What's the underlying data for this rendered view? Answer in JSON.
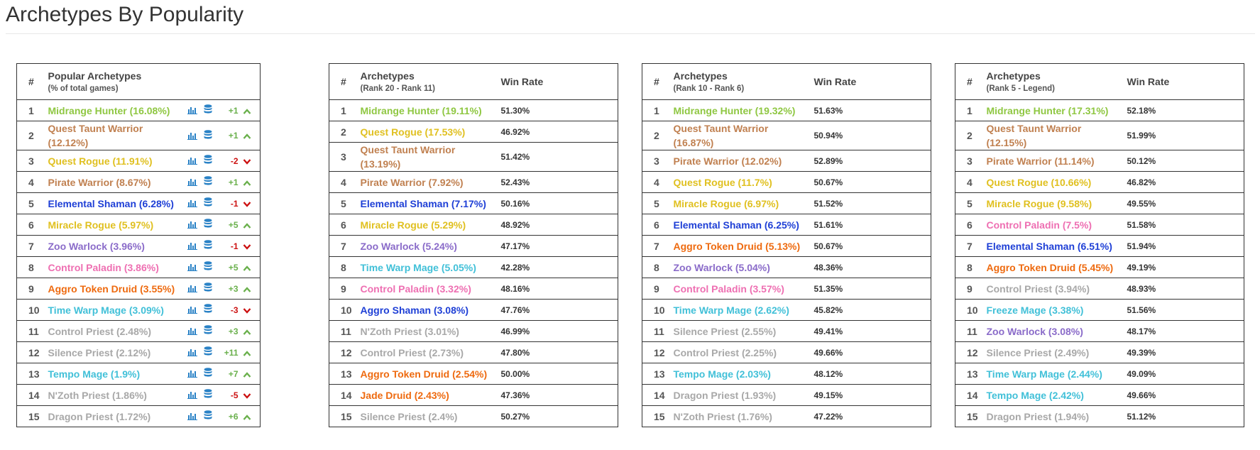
{
  "page": {
    "title": "Archetypes By Popularity"
  },
  "colors": {
    "hunter": "#8fc742",
    "warrior": "#c08050",
    "rogue": "#e0c020",
    "shaman": "#1e3fd6",
    "warlock": "#8a6bc9",
    "paladin": "#ee6fb2",
    "druid": "#ee6a0f",
    "mage": "#41c0d8",
    "priest": "#a8a8a8",
    "up": "#6ab04c",
    "down": "#cc1111"
  },
  "popular": {
    "hash": "#",
    "header": "Popular Archetypes",
    "subheader": "(% of total games)",
    "rows": [
      {
        "rank": "1",
        "name": "Midrange Hunter (16.08%)",
        "cls": "hunter",
        "change": "+1",
        "dir": "up"
      },
      {
        "rank": "2",
        "name": "Quest Taunt Warrior (12.12%)",
        "cls": "warrior",
        "change": "+1",
        "dir": "up"
      },
      {
        "rank": "3",
        "name": "Quest Rogue (11.91%)",
        "cls": "rogue",
        "change": "-2",
        "dir": "down"
      },
      {
        "rank": "4",
        "name": "Pirate Warrior (8.67%)",
        "cls": "warrior",
        "change": "+1",
        "dir": "up"
      },
      {
        "rank": "5",
        "name": "Elemental Shaman (6.28%)",
        "cls": "shaman",
        "change": "-1",
        "dir": "down"
      },
      {
        "rank": "6",
        "name": "Miracle Rogue (5.97%)",
        "cls": "rogue",
        "change": "+5",
        "dir": "up"
      },
      {
        "rank": "7",
        "name": "Zoo Warlock (3.96%)",
        "cls": "warlock",
        "change": "-1",
        "dir": "down"
      },
      {
        "rank": "8",
        "name": "Control Paladin (3.86%)",
        "cls": "paladin",
        "change": "+5",
        "dir": "up"
      },
      {
        "rank": "9",
        "name": "Aggro Token Druid (3.55%)",
        "cls": "druid",
        "change": "+3",
        "dir": "up"
      },
      {
        "rank": "10",
        "name": "Time Warp Mage (3.09%)",
        "cls": "mage",
        "change": "-3",
        "dir": "down"
      },
      {
        "rank": "11",
        "name": "Control Priest (2.48%)",
        "cls": "priest",
        "change": "+3",
        "dir": "up"
      },
      {
        "rank": "12",
        "name": "Silence Priest (2.12%)",
        "cls": "priest",
        "change": "+11",
        "dir": "up"
      },
      {
        "rank": "13",
        "name": "Tempo Mage (1.9%)",
        "cls": "mage",
        "change": "+7",
        "dir": "up"
      },
      {
        "rank": "14",
        "name": "N'Zoth Priest (1.86%)",
        "cls": "priest",
        "change": "-5",
        "dir": "down"
      },
      {
        "rank": "15",
        "name": "Dragon Priest (1.72%)",
        "cls": "priest",
        "change": "+6",
        "dir": "up"
      }
    ]
  },
  "tables": [
    {
      "hash": "#",
      "header": "Archetypes",
      "subheader": "(Rank 20 - Rank 11)",
      "winrate_header": "Win Rate",
      "rows": [
        {
          "rank": "1",
          "name": "Midrange Hunter (19.11%)",
          "cls": "hunter",
          "rate": "51.30%"
        },
        {
          "rank": "2",
          "name": "Quest Rogue (17.53%)",
          "cls": "rogue",
          "rate": "46.92%"
        },
        {
          "rank": "3",
          "name": "Quest Taunt Warrior (13.19%)",
          "cls": "warrior",
          "rate": "51.42%"
        },
        {
          "rank": "4",
          "name": "Pirate Warrior (7.92%)",
          "cls": "warrior",
          "rate": "52.43%"
        },
        {
          "rank": "5",
          "name": "Elemental Shaman (7.17%)",
          "cls": "shaman",
          "rate": "50.16%"
        },
        {
          "rank": "6",
          "name": "Miracle Rogue (5.29%)",
          "cls": "rogue",
          "rate": "48.92%"
        },
        {
          "rank": "7",
          "name": "Zoo Warlock (5.24%)",
          "cls": "warlock",
          "rate": "47.17%"
        },
        {
          "rank": "8",
          "name": "Time Warp Mage (5.05%)",
          "cls": "mage",
          "rate": "42.28%"
        },
        {
          "rank": "9",
          "name": "Control Paladin (3.32%)",
          "cls": "paladin",
          "rate": "48.16%"
        },
        {
          "rank": "10",
          "name": "Aggro Shaman (3.08%)",
          "cls": "shaman",
          "rate": "47.76%"
        },
        {
          "rank": "11",
          "name": "N'Zoth Priest (3.01%)",
          "cls": "priest",
          "rate": "46.99%"
        },
        {
          "rank": "12",
          "name": "Control Priest (2.73%)",
          "cls": "priest",
          "rate": "47.80%"
        },
        {
          "rank": "13",
          "name": "Aggro Token Druid (2.54%)",
          "cls": "druid",
          "rate": "50.00%"
        },
        {
          "rank": "14",
          "name": "Jade Druid (2.43%)",
          "cls": "druid",
          "rate": "47.36%"
        },
        {
          "rank": "15",
          "name": "Silence Priest (2.4%)",
          "cls": "priest",
          "rate": "50.27%"
        }
      ]
    },
    {
      "hash": "#",
      "header": "Archetypes",
      "subheader": "(Rank 10 - Rank 6)",
      "winrate_header": "Win Rate",
      "rows": [
        {
          "rank": "1",
          "name": "Midrange Hunter (19.32%)",
          "cls": "hunter",
          "rate": "51.63%"
        },
        {
          "rank": "2",
          "name": "Quest Taunt Warrior (16.87%)",
          "cls": "warrior",
          "rate": "50.94%"
        },
        {
          "rank": "3",
          "name": "Pirate Warrior (12.02%)",
          "cls": "warrior",
          "rate": "52.89%"
        },
        {
          "rank": "4",
          "name": "Quest Rogue (11.7%)",
          "cls": "rogue",
          "rate": "50.67%"
        },
        {
          "rank": "5",
          "name": "Miracle Rogue (6.97%)",
          "cls": "rogue",
          "rate": "51.52%"
        },
        {
          "rank": "6",
          "name": "Elemental Shaman (6.25%)",
          "cls": "shaman",
          "rate": "51.61%"
        },
        {
          "rank": "7",
          "name": "Aggro Token Druid (5.13%)",
          "cls": "druid",
          "rate": "50.67%"
        },
        {
          "rank": "8",
          "name": "Zoo Warlock (5.04%)",
          "cls": "warlock",
          "rate": "48.36%"
        },
        {
          "rank": "9",
          "name": "Control Paladin (3.57%)",
          "cls": "paladin",
          "rate": "51.35%"
        },
        {
          "rank": "10",
          "name": "Time Warp Mage (2.62%)",
          "cls": "mage",
          "rate": "45.82%"
        },
        {
          "rank": "11",
          "name": "Silence Priest (2.55%)",
          "cls": "priest",
          "rate": "49.41%"
        },
        {
          "rank": "12",
          "name": "Control Priest (2.25%)",
          "cls": "priest",
          "rate": "49.66%"
        },
        {
          "rank": "13",
          "name": "Tempo Mage (2.03%)",
          "cls": "mage",
          "rate": "48.12%"
        },
        {
          "rank": "14",
          "name": "Dragon Priest (1.93%)",
          "cls": "priest",
          "rate": "49.15%"
        },
        {
          "rank": "15",
          "name": "N'Zoth Priest (1.76%)",
          "cls": "priest",
          "rate": "47.22%"
        }
      ]
    },
    {
      "hash": "#",
      "header": "Archetypes",
      "subheader": "(Rank 5 - Legend)",
      "winrate_header": "Win Rate",
      "rows": [
        {
          "rank": "1",
          "name": "Midrange Hunter (17.31%)",
          "cls": "hunter",
          "rate": "52.18%"
        },
        {
          "rank": "2",
          "name": "Quest Taunt Warrior (12.15%)",
          "cls": "warrior",
          "rate": "51.99%"
        },
        {
          "rank": "3",
          "name": "Pirate Warrior (11.14%)",
          "cls": "warrior",
          "rate": "50.12%"
        },
        {
          "rank": "4",
          "name": "Quest Rogue (10.66%)",
          "cls": "rogue",
          "rate": "46.82%"
        },
        {
          "rank": "5",
          "name": "Miracle Rogue (9.58%)",
          "cls": "rogue",
          "rate": "49.55%"
        },
        {
          "rank": "6",
          "name": "Control Paladin (7.5%)",
          "cls": "paladin",
          "rate": "51.58%"
        },
        {
          "rank": "7",
          "name": "Elemental Shaman (6.51%)",
          "cls": "shaman",
          "rate": "51.94%"
        },
        {
          "rank": "8",
          "name": "Aggro Token Druid (5.45%)",
          "cls": "druid",
          "rate": "49.19%"
        },
        {
          "rank": "9",
          "name": "Control Priest (3.94%)",
          "cls": "priest",
          "rate": "48.93%"
        },
        {
          "rank": "10",
          "name": "Freeze Mage (3.38%)",
          "cls": "mage",
          "rate": "51.56%"
        },
        {
          "rank": "11",
          "name": "Zoo Warlock (3.08%)",
          "cls": "warlock",
          "rate": "48.17%"
        },
        {
          "rank": "12",
          "name": "Silence Priest (2.49%)",
          "cls": "priest",
          "rate": "49.39%"
        },
        {
          "rank": "13",
          "name": "Time Warp Mage (2.44%)",
          "cls": "mage",
          "rate": "49.09%"
        },
        {
          "rank": "14",
          "name": "Tempo Mage (2.42%)",
          "cls": "mage",
          "rate": "49.66%"
        },
        {
          "rank": "15",
          "name": "Dragon Priest (1.94%)",
          "cls": "priest",
          "rate": "51.12%"
        }
      ]
    }
  ]
}
